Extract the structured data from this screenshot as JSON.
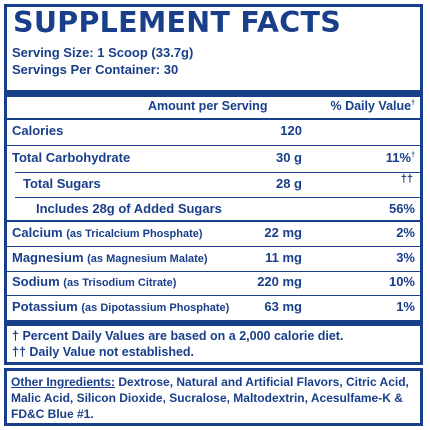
{
  "title": "SUPPLEMENT FACTS",
  "serving_size": "Serving Size: 1 Scoop (33.7g)",
  "servings_per_container": "Servings Per Container: 30",
  "header": {
    "amount": "Amount per Serving",
    "daily_value": "% Daily Value",
    "daily_value_mark": "†"
  },
  "rows": [
    {
      "name": "Calories",
      "note": "",
      "amount": "120",
      "dv": "",
      "dv_mark": ""
    },
    {
      "name": "Total Carbohydrate",
      "note": "",
      "amount": "30 g",
      "dv": "11%",
      "dv_mark": "†"
    },
    {
      "name": "Total Sugars",
      "note": "",
      "amount": "28 g",
      "dv": "",
      "dv_mark": "††"
    },
    {
      "name": "Includes 28g of Added Sugars",
      "note": "",
      "amount": "",
      "dv": "56%",
      "dv_mark": ""
    },
    {
      "name": "Calcium",
      "note": "(as Tricalcium Phosphate)",
      "amount": "22 mg",
      "dv": "2%",
      "dv_mark": ""
    },
    {
      "name": "Magnesium",
      "note": "(as Magnesium Malate)",
      "amount": "11 mg",
      "dv": "3%",
      "dv_mark": ""
    },
    {
      "name": "Sodium",
      "note": "(as Trisodium Citrate)",
      "amount": "220 mg",
      "dv": "10%",
      "dv_mark": ""
    },
    {
      "name": "Potassium",
      "note": "(as Dipotassium Phosphate)",
      "amount": "63 mg",
      "dv": "1%",
      "dv_mark": ""
    }
  ],
  "footnotes": {
    "mark_1": "†",
    "line_1": "Percent Daily Values are based on a 2,000 calorie diet.",
    "mark_2": "††",
    "line_2": "Daily Value not established."
  },
  "ingredients": {
    "label": "Other Ingredients:",
    "text": "Dextrose, Natural and Artificial Flavors, Citric Acid, Malic Acid, Silicon Dioxide, Sucralose, Maltodextrin, Acesulfame-K & FD&C Blue #1."
  },
  "colors": {
    "ink": "#1a3f8a",
    "background": "#ffffff"
  }
}
